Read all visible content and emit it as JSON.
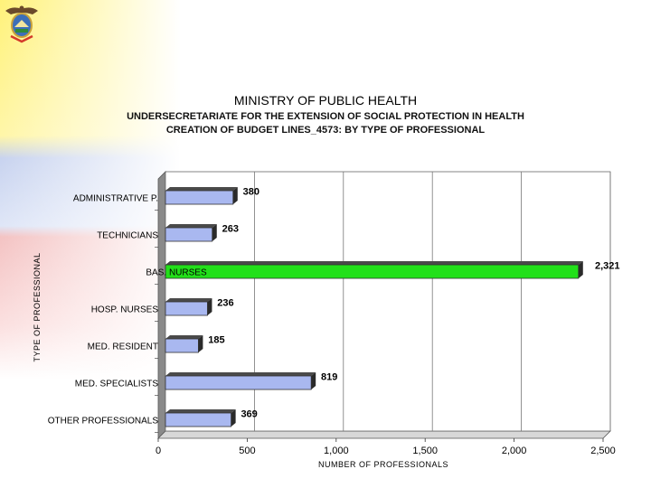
{
  "header": {
    "ministry": "MINISTRY OF PUBLIC HEALTH",
    "subtitle_line1": "UNDERSECRETARIATE FOR THE EXTENSION OF SOCIAL PROTECTION IN HEALTH",
    "subtitle_line2": "CREATION OF BUDGET LINES_4573: BY TYPE OF PROFESSIONAL"
  },
  "chart_data": {
    "type": "bar",
    "orientation": "horizontal",
    "categories": [
      "ADMINISTRATIVE P.",
      "TECHNICIANS",
      "BAS. NURSES",
      "HOSP. NURSES",
      "MED. RESIDENT",
      "MED. SPECIALISTS",
      "OTHER PROFESSIONALS"
    ],
    "values": [
      380,
      263,
      2321,
      236,
      185,
      819,
      369
    ],
    "value_labels": [
      "380",
      "263",
      "2,321",
      "236",
      "185",
      "819",
      "369"
    ],
    "xlabel": "NUMBER OF PROFESSIONALS",
    "ylabel": "TYPE OF PROFESSIONAL",
    "xlim": [
      0,
      2500
    ],
    "xticks": [
      0,
      500,
      1000,
      1500,
      2000,
      2500
    ],
    "xtick_labels": [
      "0",
      "500",
      "1,000",
      "1,500",
      "2,000",
      "2,500"
    ],
    "grid": true,
    "colors": {
      "bar": "#a9b8f0",
      "highlight_bar": "#22e01a",
      "highlight_category": "BAS. NURSES"
    }
  }
}
